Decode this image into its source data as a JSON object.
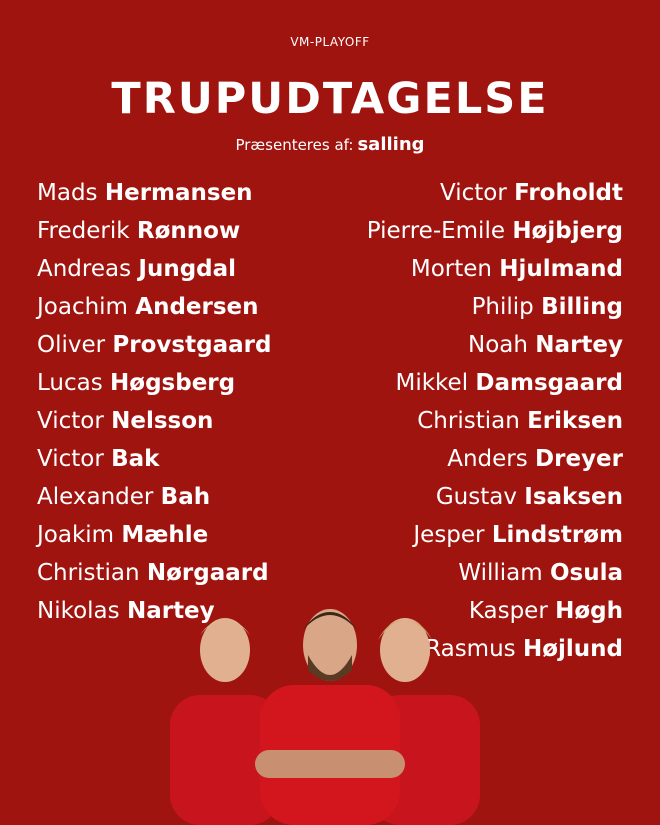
{
  "header": {
    "supertitle": "VM-PLAYOFF",
    "title": "TRUPUDTAGELSE",
    "presented_by": "Præsenteres af:",
    "sponsor": "salling"
  },
  "colors": {
    "background": "#a0140f",
    "text": "#ffffff"
  },
  "squad_left": [
    {
      "first": "Mads",
      "last": "Hermansen"
    },
    {
      "first": "Frederik",
      "last": "Rønnow"
    },
    {
      "first": "Andreas",
      "last": "Jungdal"
    },
    {
      "first": "Joachim",
      "last": "Andersen"
    },
    {
      "first": "Oliver",
      "last": "Provstgaard"
    },
    {
      "first": "Lucas",
      "last": "Høgsberg"
    },
    {
      "first": "Victor",
      "last": "Nelsson"
    },
    {
      "first": "Victor",
      "last": "Bak"
    },
    {
      "first": "Alexander",
      "last": "Bah"
    },
    {
      "first": "Joakim",
      "last": "Mæhle"
    },
    {
      "first": "Christian",
      "last": "Nørgaard"
    },
    {
      "first": "Nikolas",
      "last": "Nartey"
    }
  ],
  "squad_right": [
    {
      "first": "Victor",
      "last": "Froholdt"
    },
    {
      "first": "Pierre-Emile",
      "last": "Højbjerg"
    },
    {
      "first": "Morten",
      "last": "Hjulmand"
    },
    {
      "first": "Philip",
      "last": "Billing"
    },
    {
      "first": "Noah",
      "last": "Nartey"
    },
    {
      "first": "Mikkel",
      "last": "Damsgaard"
    },
    {
      "first": "Christian",
      "last": "Eriksen"
    },
    {
      "first": "Anders",
      "last": "Dreyer"
    },
    {
      "first": "Gustav",
      "last": "Isaksen"
    },
    {
      "first": "Jesper",
      "last": "Lindstrøm"
    },
    {
      "first": "William",
      "last": "Osula"
    },
    {
      "first": "Kasper",
      "last": "Høgh"
    },
    {
      "first": "Rasmus",
      "last": "Højlund"
    }
  ]
}
